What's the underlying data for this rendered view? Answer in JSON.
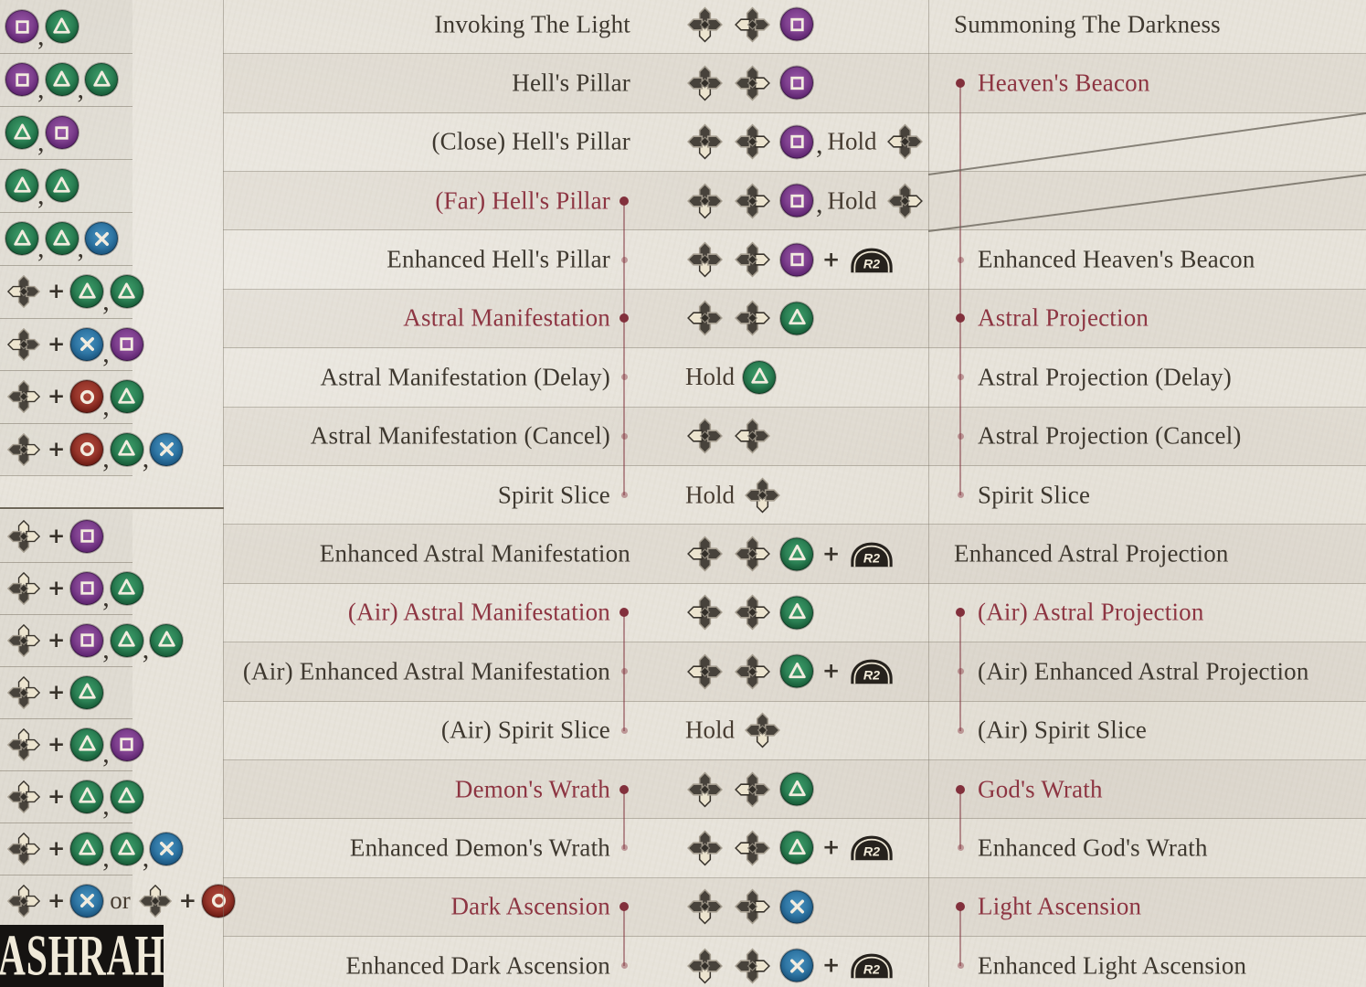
{
  "logo": "ASHRAH",
  "words": {
    "hold": "Hold",
    "or": "or",
    "plus": "+",
    "comma": ","
  },
  "colors": {
    "paper": "#e7e3da",
    "ink": "#3e382f",
    "accent_red": "#8d3542",
    "link_dot": "#82303c",
    "square_button": "#7d3f8d",
    "triangle_button": "#2b8054",
    "cross_button": "#2f76a4",
    "circle_button": "#96352a",
    "trigger_button": "#26221d",
    "dpad_highlight": "#ece4cf"
  },
  "left_rows": [
    {
      "tokens": [
        "square",
        "comma",
        "triangle"
      ]
    },
    {
      "tokens": [
        "square",
        "comma",
        "triangle",
        "comma",
        "triangle"
      ]
    },
    {
      "tokens": [
        "triangle",
        "comma",
        "square"
      ]
    },
    {
      "tokens": [
        "triangle",
        "comma",
        "triangle"
      ]
    },
    {
      "tokens": [
        "triangle",
        "comma",
        "triangle",
        "comma",
        "cross"
      ]
    },
    {
      "tokens": [
        "dpad-back",
        "plus",
        "triangle",
        "comma",
        "triangle"
      ]
    },
    {
      "tokens": [
        "dpad-back",
        "plus",
        "cross",
        "comma",
        "square"
      ]
    },
    {
      "tokens": [
        "dpad-forward",
        "plus",
        "circle",
        "comma",
        "triangle"
      ]
    },
    {
      "tokens": [
        "dpad-forward",
        "plus",
        "circle",
        "comma",
        "triangle",
        "comma",
        "cross"
      ]
    },
    {
      "tokens": [
        "dpad-upforward",
        "plus",
        "square"
      ]
    },
    {
      "tokens": [
        "dpad-upforward",
        "plus",
        "square",
        "comma",
        "triangle"
      ]
    },
    {
      "tokens": [
        "dpad-upforward",
        "plus",
        "square",
        "comma",
        "triangle",
        "comma",
        "triangle"
      ]
    },
    {
      "tokens": [
        "dpad-upforward",
        "plus",
        "triangle"
      ]
    },
    {
      "tokens": [
        "dpad-upforward",
        "plus",
        "triangle",
        "comma",
        "square"
      ]
    },
    {
      "tokens": [
        "dpad-upforward",
        "plus",
        "triangle",
        "comma",
        "triangle"
      ]
    },
    {
      "tokens": [
        "dpad-upforward",
        "plus",
        "triangle",
        "comma",
        "triangle",
        "comma",
        "cross"
      ]
    },
    {
      "tokens": [
        "dpad-upforward",
        "plus",
        "cross",
        "or",
        "dpad-up",
        "plus",
        "circle"
      ]
    }
  ],
  "moves": [
    {
      "name": "Invoking The Light",
      "style": "ink",
      "bullet": "none",
      "inputs": [
        "dpad-down",
        "dpad-back",
        "square"
      ],
      "alt": {
        "name": "Summoning The Darkness",
        "style": "ink",
        "bullet": "none"
      }
    },
    {
      "name": "Hell's Pillar",
      "style": "ink",
      "bullet": "none",
      "inputs": [
        "dpad-down",
        "dpad-forward",
        "square"
      ],
      "alt": {
        "name": "Heaven's Beacon",
        "style": "red",
        "bullet": "solid"
      }
    },
    {
      "name": "(Close) Hell's Pillar",
      "style": "ink",
      "bullet": "none",
      "inputs": [
        "dpad-down",
        "dpad-forward",
        "square",
        "comma",
        "hold",
        "dpad-back"
      ],
      "alt": null
    },
    {
      "name": "(Far) Hell's Pillar",
      "style": "red",
      "bullet": "solid",
      "inputs": [
        "dpad-down",
        "dpad-forward",
        "square",
        "comma",
        "hold",
        "dpad-forward"
      ],
      "alt": null
    },
    {
      "name": "Enhanced Hell's Pillar",
      "style": "ink",
      "bullet": "faint",
      "inputs": [
        "dpad-down",
        "dpad-forward",
        "square",
        "plus",
        "r2"
      ],
      "alt": {
        "name": "Enhanced Heaven's Beacon",
        "style": "ink",
        "bullet": "faint"
      }
    },
    {
      "name": "Astral Manifestation",
      "style": "red",
      "bullet": "solid",
      "inputs": [
        "dpad-back",
        "dpad-forward",
        "triangle"
      ],
      "alt": {
        "name": "Astral Projection",
        "style": "red",
        "bullet": "solid"
      }
    },
    {
      "name": "Astral Manifestation (Delay)",
      "style": "ink",
      "bullet": "faint",
      "inputs": [
        "hold",
        "triangle"
      ],
      "alt": {
        "name": "Astral Projection (Delay)",
        "style": "ink",
        "bullet": "faint"
      }
    },
    {
      "name": "Astral Manifestation (Cancel)",
      "style": "ink",
      "bullet": "faint",
      "inputs": [
        "dpad-back",
        "dpad-back"
      ],
      "alt": {
        "name": "Astral Projection (Cancel)",
        "style": "ink",
        "bullet": "faint"
      }
    },
    {
      "name": "Spirit Slice",
      "style": "ink",
      "bullet": "faint",
      "inputs": [
        "hold",
        "dpad-down"
      ],
      "alt": {
        "name": "Spirit Slice",
        "style": "ink",
        "bullet": "faint"
      }
    },
    {
      "name": "Enhanced Astral Manifestation",
      "style": "ink",
      "bullet": "none",
      "inputs": [
        "dpad-back",
        "dpad-forward",
        "triangle",
        "plus",
        "r2"
      ],
      "alt": {
        "name": "Enhanced Astral Projection",
        "style": "ink",
        "bullet": "none"
      }
    },
    {
      "name": "(Air) Astral Manifestation",
      "style": "red",
      "bullet": "solid",
      "inputs": [
        "dpad-back",
        "dpad-forward",
        "triangle"
      ],
      "alt": {
        "name": "(Air) Astral Projection",
        "style": "red",
        "bullet": "solid"
      }
    },
    {
      "name": "(Air) Enhanced Astral Manifestation",
      "style": "ink",
      "bullet": "faint",
      "inputs": [
        "dpad-back",
        "dpad-forward",
        "triangle",
        "plus",
        "r2"
      ],
      "alt": {
        "name": "(Air) Enhanced Astral Projection",
        "style": "ink",
        "bullet": "faint"
      }
    },
    {
      "name": "(Air) Spirit Slice",
      "style": "ink",
      "bullet": "faint",
      "inputs": [
        "hold",
        "dpad-down"
      ],
      "alt": {
        "name": "(Air) Spirit Slice",
        "style": "ink",
        "bullet": "faint"
      }
    },
    {
      "name": "Demon's Wrath",
      "style": "red",
      "bullet": "solid",
      "inputs": [
        "dpad-down",
        "dpad-back",
        "triangle"
      ],
      "alt": {
        "name": "God's Wrath",
        "style": "red",
        "bullet": "solid"
      }
    },
    {
      "name": "Enhanced Demon's Wrath",
      "style": "ink",
      "bullet": "faint",
      "inputs": [
        "dpad-down",
        "dpad-back",
        "triangle",
        "plus",
        "r2"
      ],
      "alt": {
        "name": "Enhanced God's Wrath",
        "style": "ink",
        "bullet": "faint"
      }
    },
    {
      "name": "Dark Ascension",
      "style": "red",
      "bullet": "solid",
      "inputs": [
        "dpad-down",
        "dpad-forward",
        "cross"
      ],
      "alt": {
        "name": "Light Ascension",
        "style": "red",
        "bullet": "solid"
      }
    },
    {
      "name": "Enhanced Dark Ascension",
      "style": "ink",
      "bullet": "faint",
      "inputs": [
        "dpad-down",
        "dpad-forward",
        "cross",
        "plus",
        "r2"
      ],
      "alt": {
        "name": "Enhanced Light Ascension",
        "style": "ink",
        "bullet": "faint"
      }
    }
  ]
}
